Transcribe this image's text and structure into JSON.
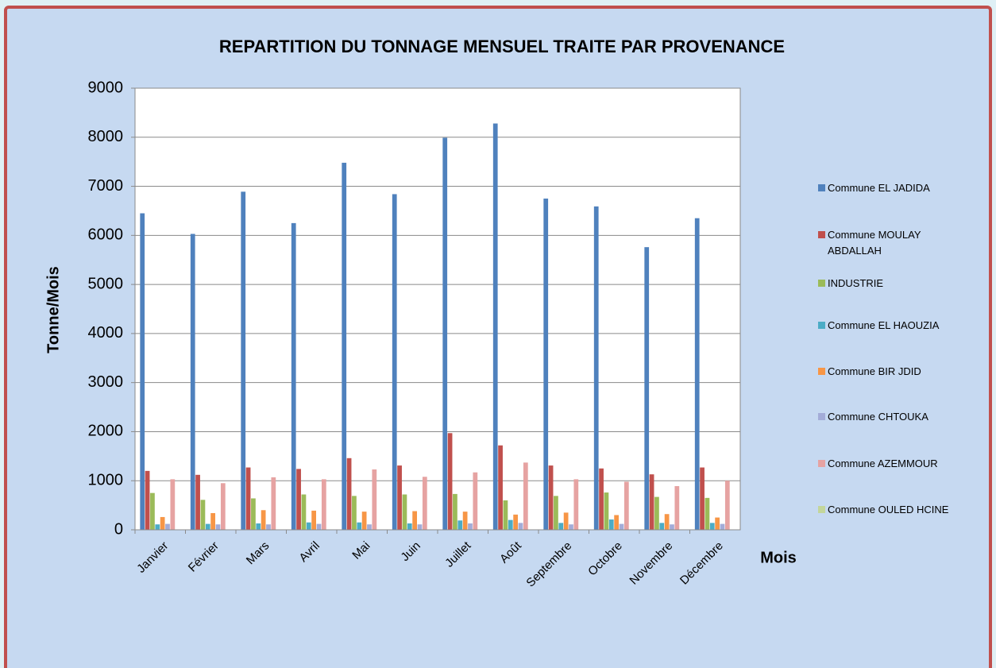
{
  "chart_data": {
    "type": "bar",
    "title": "REPARTITION DU TONNAGE MENSUEL TRAITE PAR PROVENANCE",
    "ylabel": "Tonne/Mois",
    "xlabel": "Mois",
    "categories": [
      "Janvier",
      "Février",
      "Mars",
      "Avril",
      "Mai",
      "Juin",
      "Juillet",
      "Août",
      "Septembre",
      "Octobre",
      "Novembre",
      "Décembre"
    ],
    "series": [
      {
        "name": "Commune EL JADIDA",
        "color": "#4f81bd",
        "values": [
          6450,
          6030,
          6890,
          6250,
          7480,
          6840,
          7990,
          8280,
          6750,
          6590,
          5760,
          6350
        ]
      },
      {
        "name": "Commune MOULAY ABDALLAH",
        "color": "#c0504d",
        "values": [
          1200,
          1120,
          1270,
          1240,
          1460,
          1310,
          1970,
          1720,
          1310,
          1250,
          1130,
          1270
        ]
      },
      {
        "name": "INDUSTRIE",
        "color": "#9bbb59",
        "values": [
          750,
          610,
          640,
          720,
          690,
          720,
          730,
          600,
          690,
          760,
          670,
          650
        ]
      },
      {
        "name": "Commune EL HAOUZIA",
        "color": "#4bacc6",
        "values": [
          110,
          120,
          130,
          150,
          150,
          130,
          190,
          200,
          140,
          210,
          140,
          140
        ]
      },
      {
        "name": "Commune BIR JDID",
        "color": "#f79646",
        "values": [
          260,
          340,
          400,
          390,
          370,
          380,
          370,
          310,
          350,
          300,
          320,
          250
        ]
      },
      {
        "name": "Commune CHTOUKA",
        "color": "#a3acd8",
        "values": [
          120,
          110,
          110,
          120,
          110,
          110,
          130,
          140,
          110,
          120,
          110,
          120
        ]
      },
      {
        "name": "Commune AZEMMOUR",
        "color": "#e6a3a2",
        "values": [
          1030,
          950,
          1070,
          1030,
          1230,
          1080,
          1170,
          1370,
          1030,
          980,
          890,
          1000
        ]
      },
      {
        "name": "Commune OULED HCINE",
        "color": "#c3d69b",
        "values": [
          0,
          0,
          0,
          0,
          0,
          0,
          0,
          0,
          0,
          0,
          0,
          0
        ]
      }
    ],
    "ylim": [
      0,
      9000
    ],
    "yticks": [
      0,
      1000,
      2000,
      3000,
      4000,
      5000,
      6000,
      7000,
      8000,
      9000
    ],
    "grid": true,
    "legend": "right"
  }
}
